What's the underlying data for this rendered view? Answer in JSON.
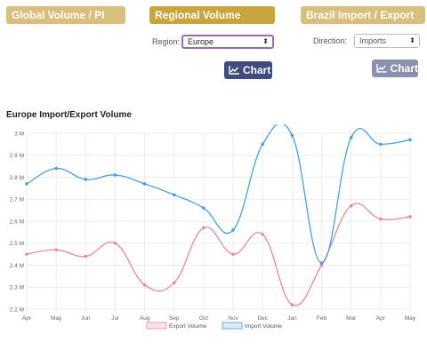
{
  "tabs": {
    "global": "Global Volume / PI",
    "regional": "Regional Volume",
    "brazil": "Brazil Import / Export"
  },
  "region_control": {
    "label": "Region:",
    "value": "Europe"
  },
  "direction_control": {
    "label": "Direction:",
    "value": "Imports"
  },
  "buttons": {
    "chart_label_1": "Chart",
    "chart_label_2": "Chart"
  },
  "chart_title": "Europe Import/Export Volume",
  "colors": {
    "tab_inactive": "#d9bf7e",
    "tab_active": "#c9a53e",
    "button_primary": "#3f4c7d",
    "button_disabled": "#8b90ae",
    "export_line": "#e8889f",
    "import_line": "#4a9fd8"
  },
  "chart_data": {
    "type": "line",
    "categories": [
      "Apr",
      "May",
      "Jun",
      "Jul",
      "Aug",
      "Sep",
      "Oct",
      "Nov",
      "Dec",
      "Jan",
      "Feb",
      "Mar",
      "Apr",
      "May"
    ],
    "series": [
      {
        "name": "Export Volume",
        "values": [
          2.45,
          2.47,
          2.44,
          2.5,
          2.31,
          2.32,
          2.57,
          2.45,
          2.54,
          2.22,
          2.4,
          2.67,
          2.61,
          2.62
        ]
      },
      {
        "name": "Import Volume",
        "values": [
          2.77,
          2.84,
          2.79,
          2.81,
          2.77,
          2.72,
          2.66,
          2.56,
          2.95,
          2.99,
          2.41,
          2.98,
          2.95,
          2.97
        ]
      }
    ],
    "ylim": [
      2.2,
      3.0
    ],
    "yticks": [
      "2.2 M",
      "2.3 M",
      "2.4 M",
      "2.5 M",
      "2.6 M",
      "2.7 M",
      "2.8 M",
      "2.9 M",
      "3 M"
    ],
    "grid": true,
    "legend_placement": "bottom"
  }
}
